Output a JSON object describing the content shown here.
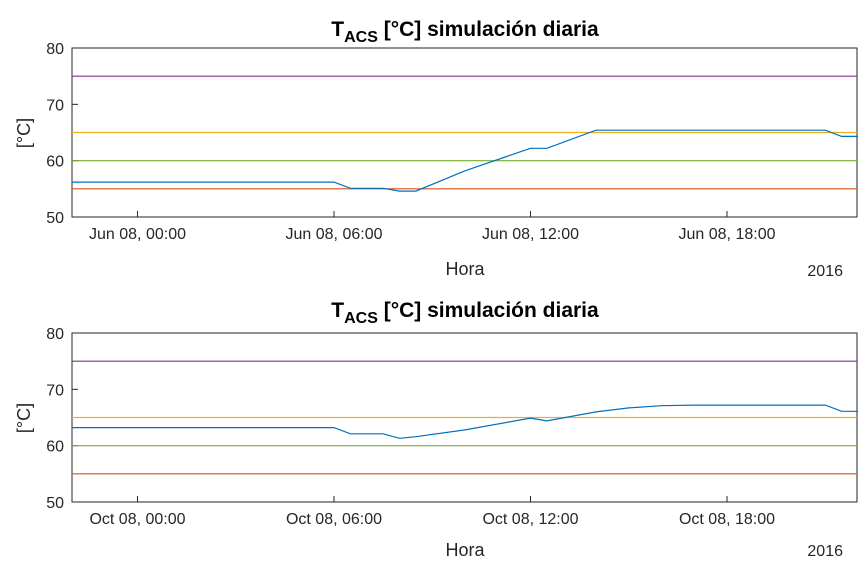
{
  "chart_data": [
    {
      "type": "line",
      "title_main": "T",
      "title_sub": "ACS",
      "title_rest": " [°C] simulación diaria",
      "ylabel": "[°C]",
      "xlabel": "Hora",
      "year_label": "2016",
      "ylim": [
        50,
        80
      ],
      "xlim_hours": [
        -2,
        22
      ],
      "yticks": [
        "50",
        "60",
        "70",
        "80"
      ],
      "xticks": [
        {
          "hour": 0,
          "label": "Jun 08, 00:00"
        },
        {
          "hour": 6,
          "label": "Jun 08, 06:00"
        },
        {
          "hour": 12,
          "label": "Jun 08, 12:00"
        },
        {
          "hour": 18,
          "label": "Jun 08, 18:00"
        }
      ],
      "hlines": [
        {
          "y": 75,
          "color": "#7E2F8E"
        },
        {
          "y": 65,
          "color": "#EDB120"
        },
        {
          "y": 60,
          "color": "#77AC30"
        },
        {
          "y": 55,
          "color": "#D95319"
        }
      ],
      "series": [
        {
          "color": "#0072BD",
          "x": [
            -2,
            6,
            6.5,
            7.5,
            8,
            8.5,
            10,
            12,
            12.5,
            14,
            15,
            21,
            21.5,
            22
          ],
          "y": [
            56.2,
            56.2,
            55.1,
            55.1,
            54.6,
            54.6,
            58.2,
            62.2,
            62.2,
            65.4,
            65.4,
            65.4,
            64.3,
            64.3
          ]
        }
      ]
    },
    {
      "type": "line",
      "title_main": "T",
      "title_sub": "ACS",
      "title_rest": " [°C] simulación diaria",
      "ylabel": "[°C]",
      "xlabel": "Hora",
      "year_label": "2016",
      "ylim": [
        50,
        80
      ],
      "xlim_hours": [
        -2,
        22
      ],
      "yticks": [
        "50",
        "60",
        "70",
        "80"
      ],
      "xticks": [
        {
          "hour": 0,
          "label": "Oct 08, 00:00"
        },
        {
          "hour": 6,
          "label": "Oct 08, 06:00"
        },
        {
          "hour": 12,
          "label": "Oct 08, 12:00"
        },
        {
          "hour": 18,
          "label": "Oct 08, 18:00"
        }
      ],
      "hlines": [
        {
          "y": 75,
          "color": "#7E2F8E"
        },
        {
          "y": 65,
          "color": "#EDB120"
        },
        {
          "y": 60,
          "color": "#77AC30"
        },
        {
          "y": 55,
          "color": "#D95319"
        }
      ],
      "series": [
        {
          "color": "#0072BD",
          "x": [
            -2,
            6,
            6.5,
            7.5,
            8,
            8.5,
            10,
            12,
            12.5,
            14,
            15,
            16,
            17,
            21,
            21.5,
            22
          ],
          "y": [
            63.2,
            63.2,
            62.1,
            62.1,
            61.3,
            61.6,
            62.8,
            64.9,
            64.4,
            66.0,
            66.7,
            67.1,
            67.2,
            67.2,
            66.1,
            66.1
          ]
        }
      ]
    }
  ]
}
